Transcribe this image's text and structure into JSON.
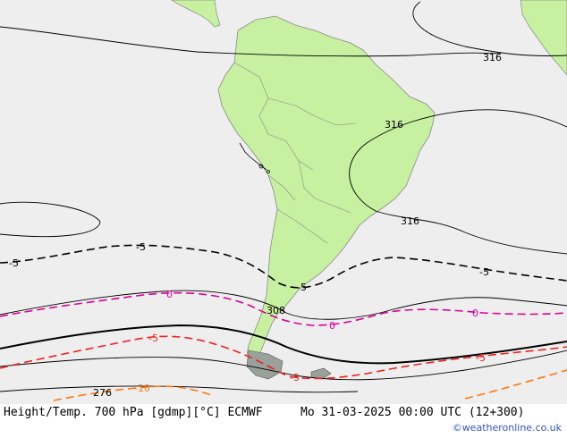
{
  "colors": {
    "ocean": "#eeeeee",
    "land": "#c7f0a0",
    "land_outline": "#8a8a8a",
    "height_contour": "#000000",
    "temp_negative": "#000000",
    "temp_zero": "#dd0099",
    "temp_cold": "#ee2222",
    "temp_colder": "#ff7711",
    "credit": "#3355bb"
  },
  "map": {
    "contour_labels": {
      "h316_north": "316",
      "h316_brazil": "316",
      "h316_east": "316",
      "h308": "308",
      "h276": "276",
      "t_m5_a": "-5",
      "t_m5_b": "-5",
      "t_m5_c": "-5",
      "t_m5_d": "-5",
      "t_0_a": "0",
      "t_0_b": "0",
      "t_0_c": "0",
      "t_cold_a": "-5",
      "t_cold_b": "-5",
      "t_cold_c": "-5",
      "t_10": "-10"
    }
  },
  "footer": {
    "product": "Height/Temp. 700 hPa [gdmp][°C] ECMWF",
    "valid_time": "Mo 31-03-2025 00:00 UTC (12+300)",
    "credit": "©weatheronline.co.uk"
  }
}
